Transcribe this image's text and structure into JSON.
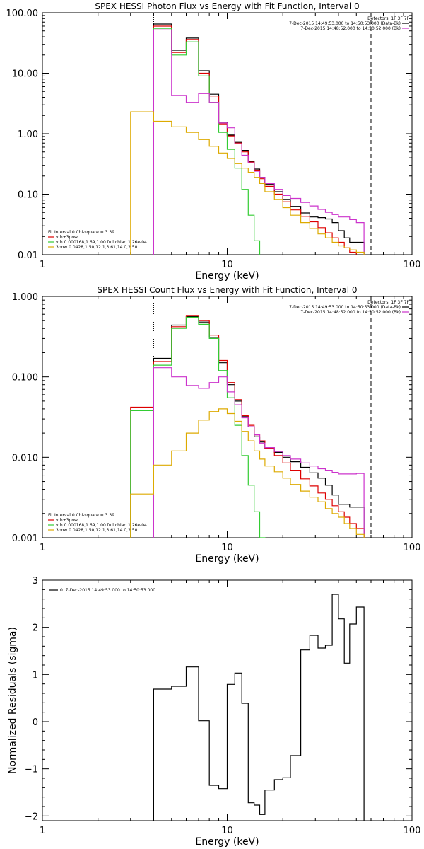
{
  "chart_data": [
    {
      "type": "line",
      "title": "SPEX HESSI Photon Flux vs Energy with Fit Function, Interval 0",
      "xlabel": "Energy (keV)",
      "ylabel": "",
      "xscale": "log",
      "yscale": "log",
      "xlim": [
        1,
        100
      ],
      "ylim": [
        0.01,
        100
      ],
      "xticks": [
        {
          "v": 1,
          "label": "1"
        },
        {
          "v": 10,
          "label": "10"
        },
        {
          "v": 100,
          "label": "100"
        }
      ],
      "yticks": [
        {
          "v": 0.01,
          "label": "0.01"
        },
        {
          "v": 0.1,
          "label": "0.10"
        },
        {
          "v": 1,
          "label": "1.00"
        },
        {
          "v": 10,
          "label": "10.00"
        },
        {
          "v": 100,
          "label": "100.00"
        }
      ],
      "vlines": [
        {
          "x": 4.0,
          "style": "dotted",
          "color": "#000000"
        },
        {
          "x": 60,
          "style": "dashed",
          "color": "#000000"
        }
      ],
      "top_legend": {
        "header": "Detectors: 1F 3F 7F",
        "items": [
          {
            "text": "7-Dec-2015 14:49:53.000 to 14:50:53.000 (Data-Bk)",
            "color": "#000000"
          },
          {
            "text": "7-Dec-2015 14:48:52.000 to 14:50:52.000 (Bk)",
            "color": "#cc33cc"
          }
        ]
      },
      "bottom_legend": {
        "header": "Fit Interval 0   Chi-square = 3.39",
        "items": [
          {
            "text": "vth+3pow",
            "color": "#dd0000"
          },
          {
            "text": "vth 0.000168,1.69,1.00  full chian 1.26e-04",
            "color": "#33cc33"
          },
          {
            "text": "3pow 0.0428,1.50,12.1,3.61,14.0,2.50",
            "color": "#ddaa00"
          }
        ]
      },
      "series": [
        {
          "color": "#000000",
          "x0": 4.0,
          "edges": [
            5.0,
            6.0,
            7.0,
            8.0,
            9.0,
            10.0,
            11.0,
            12.0,
            13.0,
            14.0,
            15.0,
            16.0,
            18.0,
            20.0,
            22.0,
            25.0,
            28.0,
            31.0,
            34.0,
            37.0,
            40.0,
            43.0,
            46.0,
            50.0,
            55.0,
            60.0
          ],
          "values": [
            65,
            24,
            38,
            11,
            4.5,
            1.55,
            0.95,
            0.72,
            0.53,
            0.35,
            0.26,
            0.19,
            0.145,
            0.11,
            0.082,
            0.063,
            0.049,
            0.042,
            0.041,
            0.039,
            0.034,
            0.025,
            0.019,
            0.016,
            0.016
          ]
        },
        {
          "color": "#dd0000",
          "x0": 4.0,
          "edges": [
            5.0,
            6.0,
            7.0,
            8.0,
            9.0,
            10.0,
            11.0,
            12.0,
            13.0,
            14.0,
            15.0,
            16.0,
            18.0,
            20.0,
            22.0,
            25.0,
            28.0,
            31.0,
            34.0,
            37.0,
            40.0,
            43.0,
            46.0,
            50.0,
            55.0,
            60.0
          ],
          "values": [
            60,
            22,
            36,
            10,
            4.2,
            1.45,
            0.92,
            0.7,
            0.5,
            0.34,
            0.25,
            0.18,
            0.135,
            0.1,
            0.075,
            0.055,
            0.043,
            0.035,
            0.028,
            0.023,
            0.019,
            0.016,
            0.013,
            0.011,
            0.009
          ]
        },
        {
          "color": "#33cc33",
          "x0": 3.0,
          "edges": [
            4.0,
            5.0,
            6.0,
            7.0,
            8.0,
            9.0,
            10.0,
            11.0,
            12.0,
            13.0,
            14.0,
            15.0,
            16.0
          ],
          "values": [
            0.008,
            55,
            20,
            33,
            9,
            3.3,
            1.05,
            0.55,
            0.27,
            0.12,
            0.045,
            0.017,
            0.009
          ]
        },
        {
          "color": "#cc33cc",
          "x0": 4.0,
          "edges": [
            5.0,
            6.0,
            7.0,
            8.0,
            9.0,
            10.0,
            11.0,
            12.0,
            13.0,
            14.0,
            15.0,
            16.0,
            18.0,
            20.0,
            22.0,
            25.0,
            28.0,
            31.0,
            34.0,
            37.0,
            40.0,
            43.0,
            46.0,
            50.0,
            55.0,
            60.0
          ],
          "values": [
            52,
            4.3,
            3.3,
            4.6,
            3.3,
            1.5,
            1.25,
            0.68,
            0.44,
            0.33,
            0.24,
            0.19,
            0.15,
            0.12,
            0.095,
            0.085,
            0.073,
            0.064,
            0.056,
            0.05,
            0.046,
            0.042,
            0.042,
            0.038,
            0.034
          ]
        },
        {
          "color": "#ddaa00",
          "x0": 3.0,
          "edges": [
            4.0,
            5.0,
            6.0,
            7.0,
            8.0,
            9.0,
            10.0,
            11.0,
            12.0,
            13.0,
            14.0,
            15.0,
            16.0,
            18.0,
            20.0,
            22.0,
            25.0,
            28.0,
            31.0,
            34.0,
            37.0,
            40.0,
            43.0,
            46.0,
            50.0,
            55.0,
            60.0
          ],
          "values": [
            2.3,
            1.6,
            1.3,
            1.05,
            0.8,
            0.62,
            0.48,
            0.39,
            0.32,
            0.27,
            0.23,
            0.19,
            0.15,
            0.11,
            0.082,
            0.06,
            0.045,
            0.034,
            0.027,
            0.022,
            0.019,
            0.016,
            0.014,
            0.013,
            0.012,
            0.011,
            0.009
          ]
        }
      ]
    },
    {
      "type": "line",
      "title": "SPEX HESSI Count Flux vs Energy with Fit Function, Interval 0",
      "xlabel": "Energy (keV)",
      "ylabel": "",
      "xscale": "log",
      "yscale": "log",
      "xlim": [
        1,
        100
      ],
      "ylim": [
        0.001,
        1
      ],
      "xticks": [
        {
          "v": 1,
          "label": "1"
        },
        {
          "v": 10,
          "label": "10"
        },
        {
          "v": 100,
          "label": "100"
        }
      ],
      "yticks": [
        {
          "v": 0.001,
          "label": "0.001"
        },
        {
          "v": 0.01,
          "label": "0.010"
        },
        {
          "v": 0.1,
          "label": "0.100"
        },
        {
          "v": 1,
          "label": "1.000"
        }
      ],
      "vlines": [
        {
          "x": 4.0,
          "style": "dotted",
          "color": "#000000"
        },
        {
          "x": 60,
          "style": "dashed",
          "color": "#000000"
        }
      ],
      "top_legend": {
        "header": "Detectors: 1F 3F 7F",
        "items": [
          {
            "text": "7-Dec-2015 14:49:53.000 to 14:50:53.000 (Data-Bk)",
            "color": "#000000"
          },
          {
            "text": "7-Dec-2015 14:48:52.000 to 14:50:52.000 (Bk)",
            "color": "#cc33cc"
          }
        ]
      },
      "bottom_legend": {
        "header": "Fit Interval 0   Chi-square = 3.39",
        "items": [
          {
            "text": "vth+3pow",
            "color": "#dd0000"
          },
          {
            "text": "vth 0.000168,1.69,1.00  full chian 1.26e-04",
            "color": "#33cc33"
          },
          {
            "text": "3pow 0.0428,1.50,12.1,3.61,14.0,2.50",
            "color": "#ddaa00"
          }
        ]
      },
      "series": [
        {
          "color": "#000000",
          "x0": 4.0,
          "edges": [
            5.0,
            6.0,
            7.0,
            8.0,
            9.0,
            10.0,
            11.0,
            12.0,
            13.0,
            14.0,
            15.0,
            16.0,
            18.0,
            20.0,
            22.0,
            25.0,
            28.0,
            31.0,
            34.0,
            37.0,
            40.0,
            43.0,
            46.0,
            50.0,
            55.0,
            60.0
          ],
          "values": [
            0.17,
            0.44,
            0.56,
            0.48,
            0.31,
            0.15,
            0.08,
            0.05,
            0.032,
            0.024,
            0.018,
            0.0155,
            0.013,
            0.0115,
            0.01,
            0.0088,
            0.0075,
            0.0064,
            0.0055,
            0.0045,
            0.0034,
            0.0026,
            0.0026,
            0.0024,
            0.0024
          ]
        },
        {
          "color": "#dd0000",
          "x0": 3.0,
          "edges": [
            4.0,
            5.0,
            6.0,
            7.0,
            8.0,
            9.0,
            10.0,
            11.0,
            12.0,
            13.0,
            14.0,
            15.0,
            16.0,
            18.0,
            20.0,
            22.0,
            25.0,
            28.0,
            31.0,
            34.0,
            37.0,
            40.0,
            43.0,
            46.0,
            50.0,
            55.0,
            60.0
          ],
          "values": [
            0.042,
            0.155,
            0.42,
            0.58,
            0.5,
            0.33,
            0.16,
            0.085,
            0.052,
            0.033,
            0.025,
            0.019,
            0.016,
            0.013,
            0.0105,
            0.0085,
            0.0068,
            0.0054,
            0.0044,
            0.0036,
            0.003,
            0.0025,
            0.0021,
            0.0018,
            0.0015,
            0.0013
          ]
        },
        {
          "color": "#33cc33",
          "x0": 3.0,
          "edges": [
            4.0,
            5.0,
            6.0,
            7.0,
            8.0,
            9.0,
            10.0,
            11.0,
            12.0,
            13.0,
            14.0,
            15.0,
            16.0
          ],
          "values": [
            0.038,
            0.14,
            0.4,
            0.55,
            0.45,
            0.3,
            0.12,
            0.055,
            0.025,
            0.0105,
            0.0045,
            0.0021,
            0.001
          ]
        },
        {
          "color": "#cc33cc",
          "x0": 4.0,
          "edges": [
            5.0,
            6.0,
            7.0,
            8.0,
            9.0,
            10.0,
            11.0,
            12.0,
            13.0,
            14.0,
            15.0,
            16.0,
            18.0,
            20.0,
            22.0,
            25.0,
            28.0,
            31.0,
            34.0,
            37.0,
            40.0,
            43.0,
            46.0,
            50.0,
            55.0,
            60.0
          ],
          "values": [
            0.13,
            0.1,
            0.078,
            0.072,
            0.085,
            0.1,
            0.065,
            0.045,
            0.031,
            0.024,
            0.019,
            0.015,
            0.0132,
            0.0118,
            0.0105,
            0.0095,
            0.0085,
            0.0078,
            0.0072,
            0.0068,
            0.0065,
            0.0062,
            0.0062,
            0.0062,
            0.0063
          ]
        },
        {
          "color": "#ddaa00",
          "x0": 3.0,
          "edges": [
            4.0,
            5.0,
            6.0,
            7.0,
            8.0,
            9.0,
            10.0,
            11.0,
            12.0,
            13.0,
            14.0,
            15.0,
            16.0,
            18.0,
            20.0,
            22.0,
            25.0,
            28.0,
            31.0,
            34.0,
            37.0,
            40.0,
            43.0,
            46.0,
            50.0,
            55.0,
            60.0
          ],
          "values": [
            0.0035,
            0.008,
            0.012,
            0.02,
            0.029,
            0.037,
            0.04,
            0.035,
            0.028,
            0.021,
            0.016,
            0.012,
            0.0095,
            0.0078,
            0.0066,
            0.0055,
            0.0046,
            0.0038,
            0.0032,
            0.0028,
            0.0023,
            0.002,
            0.0018,
            0.0015,
            0.0013,
            0.0011
          ]
        }
      ]
    },
    {
      "type": "line",
      "title": "",
      "xlabel": "Energy (keV)",
      "ylabel": "Normalized Residuals (sigma)",
      "xscale": "log",
      "yscale": "linear",
      "xlim": [
        1,
        100
      ],
      "ylim": [
        -2.1,
        3.0
      ],
      "xticks": [
        {
          "v": 1,
          "label": "1"
        },
        {
          "v": 10,
          "label": "10"
        },
        {
          "v": 100,
          "label": "100"
        }
      ],
      "yticks": [
        {
          "v": -2,
          "label": "−2"
        },
        {
          "v": -1,
          "label": "−1"
        },
        {
          "v": 0,
          "label": "0"
        },
        {
          "v": 1,
          "label": "1"
        },
        {
          "v": 2,
          "label": "2"
        },
        {
          "v": 3,
          "label": "3"
        }
      ],
      "vlines": [],
      "top_legend": {
        "header": "",
        "items": [
          {
            "text": "0. 7-Dec-2015 14:49:53.000 to 14:50:53.000",
            "color": "#000000"
          }
        ]
      },
      "bottom_legend": {
        "header": "",
        "items": []
      },
      "series": [
        {
          "color": "#000000",
          "x0": 4.0,
          "edges": [
            5.0,
            6.0,
            7.0,
            8.0,
            9.0,
            10.0,
            11.0,
            12.0,
            13.0,
            14.0,
            15.0,
            16.0,
            18.0,
            20.0,
            22.0,
            25.0,
            28.0,
            31.0,
            34.0,
            37.0,
            40.0,
            43.0,
            46.0,
            50.0,
            55.0,
            60.0
          ],
          "values": [
            0.69,
            0.75,
            1.16,
            0.02,
            -1.35,
            -1.42,
            0.79,
            1.03,
            0.39,
            -1.72,
            -1.77,
            -1.97,
            -1.45,
            -1.23,
            -1.19,
            -0.72,
            1.52,
            1.83,
            1.56,
            1.62,
            2.7,
            2.18,
            1.24,
            2.07,
            2.43
          ],
          "start": -2.1,
          "end": -2.1
        }
      ]
    }
  ]
}
